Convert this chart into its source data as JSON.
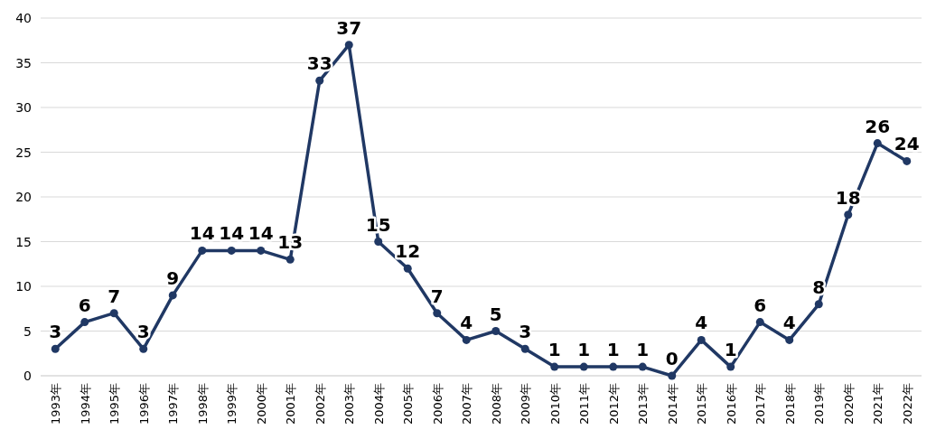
{
  "chart_data": {
    "type": "line",
    "categories": [
      "1993年",
      "1994年",
      "1995年",
      "1996年",
      "1997年",
      "1998年",
      "1999年",
      "2000年",
      "2001年",
      "2002年",
      "2003年",
      "2004年",
      "2005年",
      "2006年",
      "2007年",
      "2008年",
      "2009年",
      "2010年",
      "2011年",
      "2012年",
      "2013年",
      "2014年",
      "2015年",
      "2016年",
      "2017年",
      "2018年",
      "2019年",
      "2020年",
      "2021年",
      "2022年"
    ],
    "series": [
      {
        "color": "#203864",
        "values": [
          3,
          6,
          7,
          3,
          9,
          14,
          14,
          14,
          13,
          33,
          37,
          15,
          12,
          7,
          4,
          5,
          3,
          1,
          1,
          1,
          1,
          0,
          4,
          1,
          6,
          4,
          8,
          18,
          26,
          24
        ]
      }
    ],
    "ylim": [
      0,
      40
    ],
    "yticks": [
      0,
      5,
      10,
      15,
      20,
      25,
      30,
      35,
      40
    ],
    "grid": "y",
    "marker": "circle",
    "line_style": "solid",
    "data_labels": true
  }
}
